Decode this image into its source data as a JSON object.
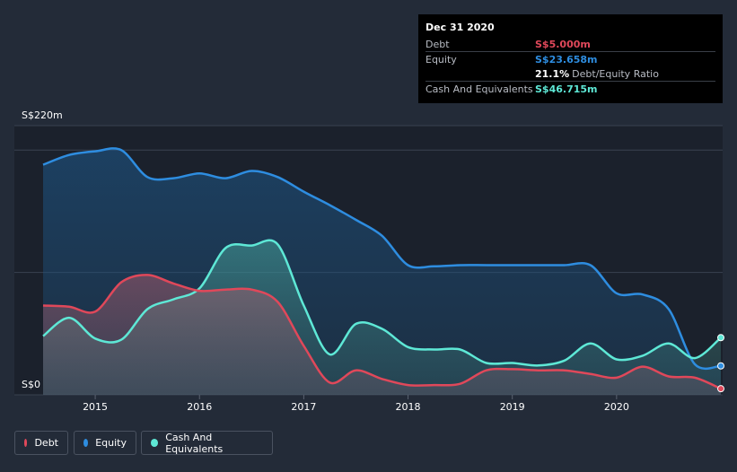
{
  "chart_data": {
    "type": "area",
    "title": "",
    "ylabel": "",
    "xlabel": "",
    "y_unit_prefix": "S$",
    "ylim": [
      0,
      220
    ],
    "y_ticks": [
      {
        "value": 0,
        "label": "S$0"
      },
      {
        "value": 220,
        "label": "S$220m"
      }
    ],
    "gridlines": [
      0,
      100,
      200,
      220
    ],
    "x_range": [
      2014.5,
      2021.0
    ],
    "x_ticks": [
      {
        "value": 2015,
        "label": "2015"
      },
      {
        "value": 2016,
        "label": "2016"
      },
      {
        "value": 2017,
        "label": "2017"
      },
      {
        "value": 2018,
        "label": "2018"
      },
      {
        "value": 2019,
        "label": "2019"
      },
      {
        "value": 2020,
        "label": "2020"
      }
    ],
    "series": [
      {
        "name": "Equity",
        "key": "equity",
        "color": "#2e8de0",
        "points": [
          [
            2014.5,
            188
          ],
          [
            2014.75,
            196
          ],
          [
            2015.0,
            199
          ],
          [
            2015.25,
            200
          ],
          [
            2015.5,
            178
          ],
          [
            2015.75,
            177
          ],
          [
            2016.0,
            181
          ],
          [
            2016.25,
            177
          ],
          [
            2016.5,
            183
          ],
          [
            2016.75,
            178
          ],
          [
            2017.0,
            166
          ],
          [
            2017.25,
            155
          ],
          [
            2017.5,
            143
          ],
          [
            2017.75,
            130
          ],
          [
            2018.0,
            106
          ],
          [
            2018.25,
            105
          ],
          [
            2018.5,
            106
          ],
          [
            2018.75,
            106
          ],
          [
            2019.0,
            106
          ],
          [
            2019.25,
            106
          ],
          [
            2019.5,
            106
          ],
          [
            2019.75,
            106
          ],
          [
            2020.0,
            83
          ],
          [
            2020.25,
            82
          ],
          [
            2020.5,
            70
          ],
          [
            2020.75,
            25
          ],
          [
            2021.0,
            23.658
          ]
        ]
      },
      {
        "name": "Cash And Equivalents",
        "key": "cash",
        "color": "#5ee8d6",
        "points": [
          [
            2014.5,
            48
          ],
          [
            2014.75,
            63
          ],
          [
            2015.0,
            46
          ],
          [
            2015.25,
            45
          ],
          [
            2015.5,
            70
          ],
          [
            2015.75,
            78
          ],
          [
            2016.0,
            87
          ],
          [
            2016.25,
            120
          ],
          [
            2016.5,
            122
          ],
          [
            2016.75,
            123
          ],
          [
            2017.0,
            73
          ],
          [
            2017.25,
            33
          ],
          [
            2017.5,
            58
          ],
          [
            2017.75,
            54
          ],
          [
            2018.0,
            39
          ],
          [
            2018.25,
            37
          ],
          [
            2018.5,
            37
          ],
          [
            2018.75,
            26
          ],
          [
            2019.0,
            26
          ],
          [
            2019.25,
            24
          ],
          [
            2019.5,
            28
          ],
          [
            2019.75,
            42
          ],
          [
            2020.0,
            29
          ],
          [
            2020.25,
            32
          ],
          [
            2020.5,
            42
          ],
          [
            2020.75,
            30
          ],
          [
            2021.0,
            46.715
          ]
        ]
      },
      {
        "name": "Debt",
        "key": "debt",
        "color": "#e0485a",
        "points": [
          [
            2014.5,
            73
          ],
          [
            2014.75,
            72
          ],
          [
            2015.0,
            68
          ],
          [
            2015.25,
            92
          ],
          [
            2015.5,
            98
          ],
          [
            2015.75,
            91
          ],
          [
            2016.0,
            85
          ],
          [
            2016.25,
            86
          ],
          [
            2016.5,
            86
          ],
          [
            2016.75,
            76
          ],
          [
            2017.0,
            40
          ],
          [
            2017.25,
            10
          ],
          [
            2017.5,
            20
          ],
          [
            2017.75,
            13
          ],
          [
            2018.0,
            8
          ],
          [
            2018.25,
            8
          ],
          [
            2018.5,
            9
          ],
          [
            2018.75,
            20
          ],
          [
            2019.0,
            21
          ],
          [
            2019.25,
            20
          ],
          [
            2019.5,
            20
          ],
          [
            2019.75,
            17
          ],
          [
            2020.0,
            14
          ],
          [
            2020.25,
            23
          ],
          [
            2020.5,
            15
          ],
          [
            2020.75,
            14
          ],
          [
            2021.0,
            5.0
          ]
        ]
      }
    ],
    "legend": [
      {
        "name": "Debt",
        "color": "#e0485a"
      },
      {
        "name": "Equity",
        "color": "#2e8de0"
      },
      {
        "name": "Cash And Equivalents",
        "color": "#5ee8d6"
      }
    ],
    "legend_position": "bottom-left"
  },
  "tooltip": {
    "date": "Dec 31 2020",
    "rows": [
      {
        "label": "Debt",
        "value": "S$5.000m",
        "color": "#e0485a"
      },
      {
        "label": "Equity",
        "value": "S$23.658m",
        "color": "#2e8de0"
      },
      {
        "label": "",
        "value": "21.1%",
        "sub": "Debt/Equity Ratio",
        "color": "#ffffff"
      },
      {
        "label": "Cash And Equivalents",
        "value": "S$46.715m",
        "color": "#5ee8d6"
      }
    ]
  }
}
